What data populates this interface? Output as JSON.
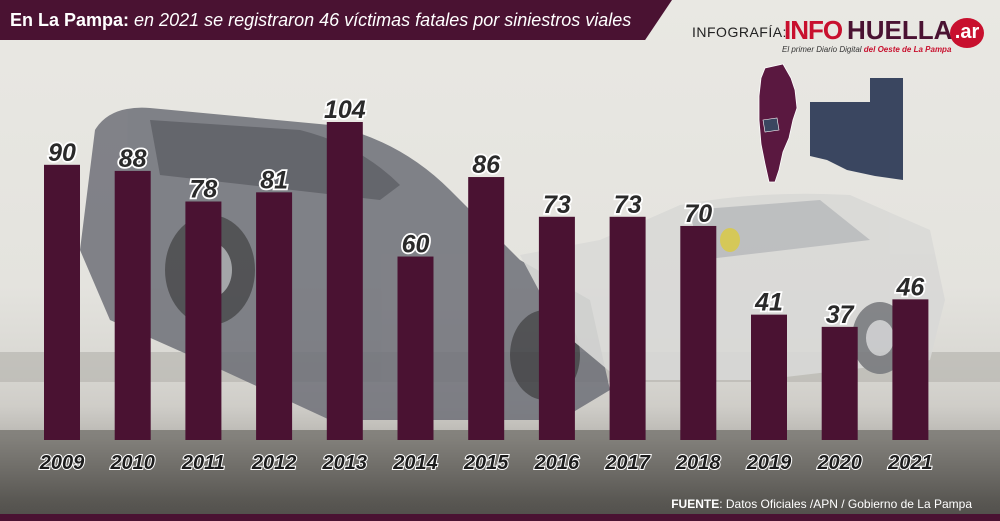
{
  "title": {
    "lead": "En La Pampa:",
    "rest": " en 2021 se registraron 46 víctimas fatales por siniestros viales"
  },
  "brand": {
    "prefix": "INFOGRAFÍA:",
    "info": "INFO",
    "huella": "HUELLA",
    "ar": ".ar",
    "tagline_start": "El primer Diario Digital ",
    "tagline_end": "del Oeste de La Pampa"
  },
  "source": {
    "label": "FUENTE",
    "text": ": Datos Oficiales /APN / Gobierno de La Pampa"
  },
  "colors": {
    "bar": "#4a1232",
    "title_bar": "#4a1232",
    "brand_red": "#c8102e",
    "map_province": "#3a4660",
    "map_country": "#5a1840"
  },
  "icons": {
    "map": "argentina-la-pampa-map-icon",
    "background": "car-crash-photo"
  },
  "chart_data": {
    "type": "bar",
    "categories": [
      "2009",
      "2010",
      "2011",
      "2012",
      "2013",
      "2014",
      "2015",
      "2016",
      "2017",
      "2018",
      "2019",
      "2020",
      "2021"
    ],
    "values": [
      90,
      88,
      78,
      81,
      104,
      60,
      86,
      73,
      73,
      70,
      41,
      37,
      46
    ],
    "title": "En La Pampa: en 2021 se registraron 46 víctimas fatales por siniestros viales",
    "xlabel": "",
    "ylabel": "",
    "ylim": [
      0,
      104
    ],
    "grid": false,
    "legend": "none",
    "data_labels": true
  }
}
